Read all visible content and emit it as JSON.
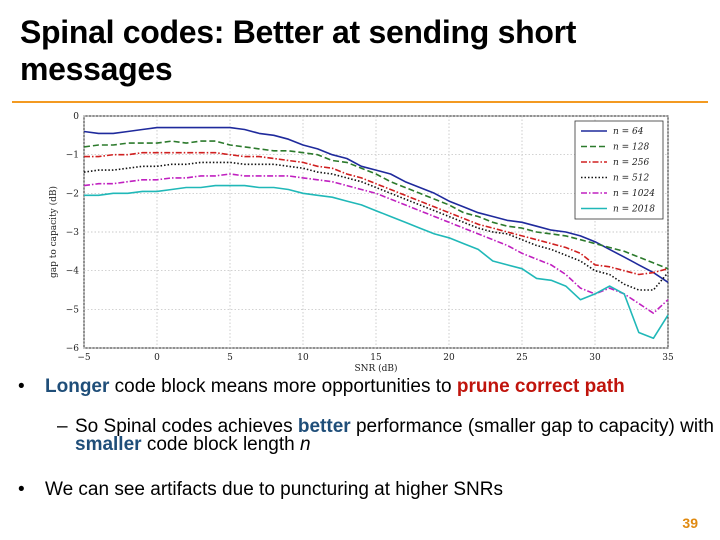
{
  "slide": {
    "title": "Spinal codes: Better at sending short messages",
    "number": "39"
  },
  "bullets": [
    {
      "marker": "•",
      "parts": [
        {
          "text": "Longer",
          "style": "blue"
        },
        {
          "text": " code block means more opportunities to ",
          "style": "normal"
        },
        {
          "text": "prune correct path",
          "style": "red"
        }
      ]
    },
    {
      "marker": "–",
      "parts": [
        {
          "text": "So Spinal codes achieves ",
          "style": "normal"
        },
        {
          "text": "better",
          "style": "blue"
        },
        {
          "text": " performance (smaller gap to capacity) with ",
          "style": "normal"
        },
        {
          "text": "smaller",
          "style": "blue"
        },
        {
          "text": " code block length ",
          "style": "normal"
        },
        {
          "text": "n",
          "style": "italic"
        }
      ]
    },
    {
      "marker": "•",
      "parts": [
        {
          "text": "We can see artifacts due to puncturing at higher SNRs",
          "style": "normal"
        }
      ]
    }
  ],
  "chart_data": {
    "type": "line",
    "title": "",
    "xlabel": "SNR (dB)",
    "ylabel": "gap to capacity (dB)",
    "xlim": [
      -5,
      35
    ],
    "ylim": [
      -6,
      0
    ],
    "xticks": [
      -5,
      0,
      5,
      10,
      15,
      20,
      25,
      30,
      35
    ],
    "yticks": [
      0,
      -1,
      -2,
      -3,
      -4,
      -5,
      -6
    ],
    "grid": true,
    "legend_position": "top-right",
    "x": [
      -5,
      -4,
      -3,
      -2,
      -1,
      0,
      1,
      2,
      3,
      4,
      5,
      6,
      7,
      8,
      9,
      10,
      11,
      12,
      13,
      14,
      15,
      16,
      17,
      18,
      19,
      20,
      21,
      22,
      23,
      24,
      25,
      26,
      27,
      28,
      29,
      30,
      31,
      32,
      33,
      34,
      35
    ],
    "series": [
      {
        "name": "n = 64",
        "color": "#1f2a9c",
        "dash": "solid",
        "values": [
          -0.4,
          -0.45,
          -0.45,
          -0.4,
          -0.35,
          -0.3,
          -0.3,
          -0.3,
          -0.3,
          -0.3,
          -0.3,
          -0.35,
          -0.45,
          -0.5,
          -0.6,
          -0.75,
          -0.85,
          -1.0,
          -1.1,
          -1.3,
          -1.4,
          -1.5,
          -1.7,
          -1.85,
          -2.0,
          -2.2,
          -2.35,
          -2.5,
          -2.6,
          -2.7,
          -2.75,
          -2.85,
          -2.95,
          -3.0,
          -3.1,
          -3.25,
          -3.45,
          -3.65,
          -3.85,
          -4.05,
          -4.3
        ]
      },
      {
        "name": "n = 128",
        "color": "#2c7a2c",
        "dash": "dashed",
        "values": [
          -0.8,
          -0.75,
          -0.75,
          -0.7,
          -0.7,
          -0.7,
          -0.65,
          -0.7,
          -0.65,
          -0.65,
          -0.75,
          -0.8,
          -0.85,
          -0.9,
          -0.9,
          -0.95,
          -1.0,
          -1.15,
          -1.2,
          -1.35,
          -1.5,
          -1.7,
          -1.85,
          -2.0,
          -2.15,
          -2.3,
          -2.5,
          -2.6,
          -2.75,
          -2.85,
          -2.9,
          -3.0,
          -3.05,
          -3.1,
          -3.2,
          -3.3,
          -3.4,
          -3.5,
          -3.65,
          -3.8,
          -3.95
        ]
      },
      {
        "name": "n = 256",
        "color": "#d02020",
        "dash": "dashdot",
        "values": [
          -1.05,
          -1.05,
          -1.0,
          -1.0,
          -0.95,
          -0.95,
          -0.95,
          -0.95,
          -0.95,
          -0.95,
          -1.0,
          -1.05,
          -1.05,
          -1.1,
          -1.15,
          -1.2,
          -1.3,
          -1.35,
          -1.5,
          -1.6,
          -1.75,
          -1.9,
          -2.05,
          -2.2,
          -2.35,
          -2.5,
          -2.65,
          -2.8,
          -2.9,
          -3.0,
          -3.1,
          -3.2,
          -3.3,
          -3.4,
          -3.55,
          -3.85,
          -3.9,
          -4.0,
          -4.1,
          -4.05,
          -3.95
        ]
      },
      {
        "name": "n = 512",
        "color": "#111111",
        "dash": "dotted",
        "values": [
          -1.45,
          -1.4,
          -1.4,
          -1.35,
          -1.3,
          -1.3,
          -1.25,
          -1.25,
          -1.2,
          -1.2,
          -1.2,
          -1.25,
          -1.25,
          -1.25,
          -1.3,
          -1.35,
          -1.45,
          -1.5,
          -1.6,
          -1.7,
          -1.85,
          -2.0,
          -2.15,
          -2.3,
          -2.45,
          -2.6,
          -2.75,
          -2.9,
          -3.0,
          -3.05,
          -3.2,
          -3.35,
          -3.45,
          -3.6,
          -3.75,
          -4.0,
          -4.1,
          -4.35,
          -4.5,
          -4.5,
          -4.05
        ]
      },
      {
        "name": "n = 1024",
        "color": "#c020c0",
        "dash": "dashdot",
        "values": [
          -1.8,
          -1.75,
          -1.75,
          -1.7,
          -1.65,
          -1.65,
          -1.6,
          -1.6,
          -1.55,
          -1.55,
          -1.5,
          -1.55,
          -1.55,
          -1.55,
          -1.55,
          -1.6,
          -1.65,
          -1.7,
          -1.8,
          -1.9,
          -2.0,
          -2.15,
          -2.3,
          -2.45,
          -2.6,
          -2.75,
          -2.9,
          -3.05,
          -3.2,
          -3.35,
          -3.55,
          -3.7,
          -3.85,
          -4.1,
          -4.45,
          -4.6,
          -4.45,
          -4.6,
          -4.85,
          -5.1,
          -4.75
        ]
      },
      {
        "name": "n = 2018",
        "color": "#20b8b8",
        "dash": "solid",
        "values": [
          -2.05,
          -2.05,
          -2.0,
          -2.0,
          -1.95,
          -1.95,
          -1.9,
          -1.85,
          -1.85,
          -1.8,
          -1.8,
          -1.8,
          -1.85,
          -1.85,
          -1.9,
          -2.0,
          -2.05,
          -2.1,
          -2.2,
          -2.3,
          -2.45,
          -2.6,
          -2.75,
          -2.9,
          -3.05,
          -3.15,
          -3.3,
          -3.45,
          -3.75,
          -3.85,
          -3.95,
          -4.2,
          -4.25,
          -4.4,
          -4.75,
          -4.6,
          -4.4,
          -4.6,
          -5.6,
          -5.75,
          -5.15
        ]
      }
    ]
  }
}
